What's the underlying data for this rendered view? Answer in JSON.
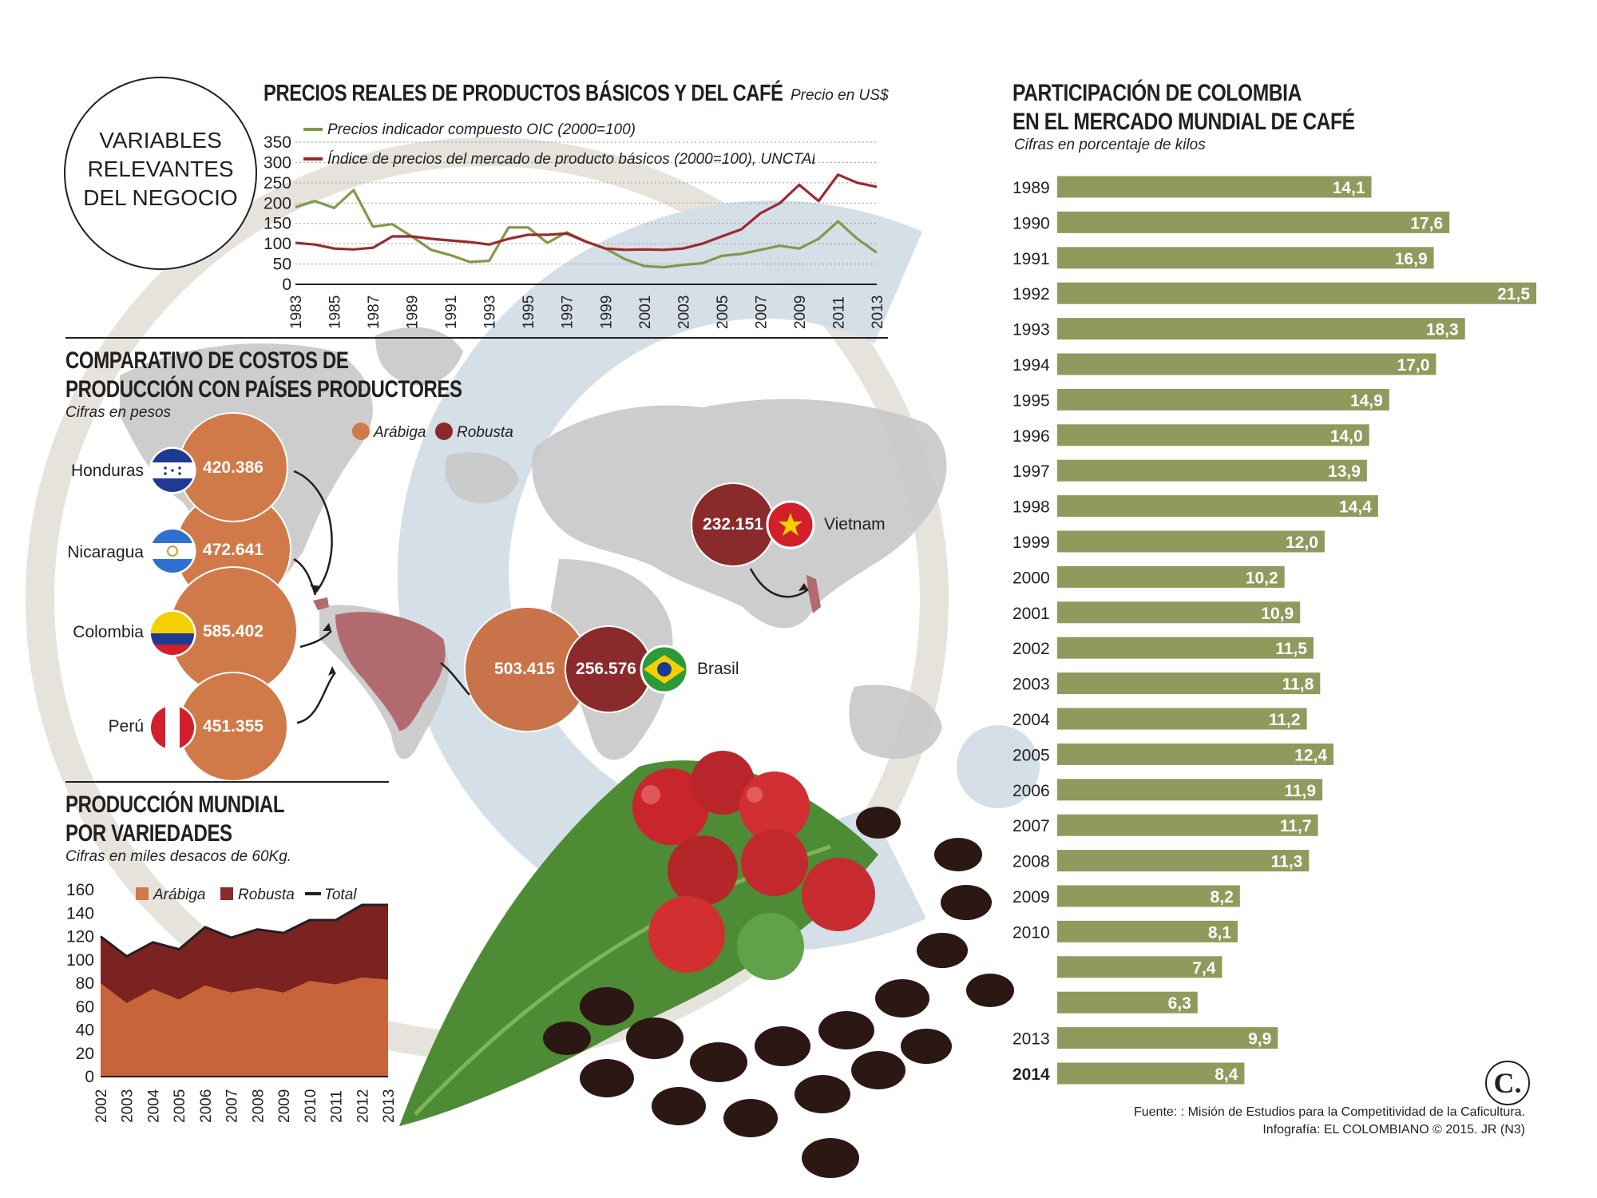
{
  "badge": {
    "line1": "VARIABLES",
    "line2": "RELEVANTES",
    "line3": "DEL NEGOCIO"
  },
  "prices": {
    "title": "PRECIOS REALES DE PRODUCTOS BÁSICOS Y DEL CAFÉ",
    "unit": "Precio en US$",
    "legend_oic": "Precios indicador compuesto OIC (2000=100)",
    "legend_unctad": "Índice de precios del mercado de producto básicos (2000=100), UNCTAD"
  },
  "costs": {
    "title_line1": "COMPARATIVO DE COSTOS DE",
    "title_line2": "PRODUCCIÓN CON PAÍSES PRODUCTORES",
    "subtitle": "Cifras en pesos",
    "legend_arabica": "Arábiga",
    "legend_robusta": "Robusta",
    "countries": [
      {
        "name": "Honduras",
        "arabica": "420.386"
      },
      {
        "name": "Nicaragua",
        "arabica": "472.641"
      },
      {
        "name": "Colombia",
        "arabica": "585.402"
      },
      {
        "name": "Perú",
        "arabica": "451.355"
      }
    ],
    "brasil": {
      "name": "Brasil",
      "arabica": "503.415",
      "robusta": "256.576"
    },
    "vietnam": {
      "name": "Vietnam",
      "robusta": "232.151"
    }
  },
  "production": {
    "title_line1": "PRODUCCIÓN MUNDIAL",
    "title_line2": "POR VARIEDADES",
    "subtitle": "Cifras en miles desacos de 60Kg.",
    "legend_arabica": "Arábiga",
    "legend_robusta": "Robusta",
    "legend_total": "Total"
  },
  "share": {
    "title_line1": "PARTICIPACIÓN DE COLOMBIA",
    "title_line2": "EN EL MERCADO MUNDIAL DE CAFÉ",
    "subtitle": "Cifras en porcentaje de kilos"
  },
  "footer": {
    "source": "Fuente: : Misión de Estudios para la Competitividad de la Caficultura.",
    "credit": "Infografía: EL COLOMBIANO © 2015. JR (N3)"
  },
  "logo_text": "C.",
  "colors": {
    "arabica": "#d07a4a",
    "robusta": "#8b2a2a",
    "oic": "#7f9a4a",
    "unctad": "#9b2a2e",
    "bar": "#8f9a5c",
    "arabica_area": "#c8643a",
    "robusta_area": "#7a2320",
    "map": "#c9c9c9",
    "watermark": "#d3dde6"
  },
  "chart_data": [
    {
      "type": "line",
      "x": [
        1983,
        1984,
        1985,
        1986,
        1987,
        1988,
        1989,
        1990,
        1991,
        1992,
        1993,
        1994,
        1995,
        1996,
        1997,
        1998,
        1999,
        2000,
        2001,
        2002,
        2003,
        2004,
        2005,
        2006,
        2007,
        2008,
        2009,
        2010,
        2011,
        2012,
        2013
      ],
      "xticks": [
        "1983",
        "1985",
        "1987",
        "1989",
        "1991",
        "1993",
        "1995",
        "1997",
        "1999",
        "2001",
        "2003",
        "2005",
        "2007",
        "2009",
        "2011",
        "2013"
      ],
      "yticks": [
        "0",
        "50",
        "100",
        "150",
        "200",
        "250",
        "300",
        "350"
      ],
      "ylim": [
        0,
        350
      ],
      "series": [
        {
          "name": "Precios indicador compuesto OIC (2000=100)",
          "values": [
            190,
            205,
            188,
            232,
            142,
            148,
            118,
            85,
            72,
            55,
            58,
            140,
            140,
            102,
            128,
            105,
            88,
            62,
            45,
            42,
            48,
            52,
            70,
            75,
            85,
            95,
            88,
            112,
            155,
            112,
            78
          ]
        },
        {
          "name": "Índice de precios del mercado de producto básicos (2000=100), UNCTAD",
          "values": [
            102,
            98,
            88,
            86,
            90,
            118,
            118,
            112,
            108,
            104,
            98,
            112,
            122,
            122,
            125,
            105,
            88,
            85,
            86,
            85,
            88,
            100,
            118,
            135,
            175,
            200,
            245,
            205,
            270,
            250,
            240
          ]
        }
      ]
    },
    {
      "type": "area",
      "x": [
        "2002",
        "2003",
        "2004",
        "2005",
        "2006",
        "2007",
        "2008",
        "2009",
        "2010",
        "2011",
        "2012",
        "2013"
      ],
      "yticks": [
        "0",
        "20",
        "40",
        "60",
        "80",
        "100",
        "120",
        "140",
        "160"
      ],
      "ylim": [
        0,
        160
      ],
      "series": [
        {
          "name": "Arábiga",
          "values": [
            80,
            63,
            75,
            66,
            78,
            72,
            76,
            72,
            82,
            79,
            85,
            83
          ]
        },
        {
          "name": "Robusta",
          "values": [
            40,
            40,
            40,
            43,
            50,
            47,
            50,
            51,
            52,
            55,
            62,
            64
          ]
        },
        {
          "name": "Total",
          "values": [
            120,
            103,
            115,
            109,
            128,
            119,
            126,
            123,
            134,
            134,
            147,
            147
          ]
        }
      ]
    },
    {
      "type": "bar",
      "categories": [
        "1989",
        "1990",
        "1991",
        "1992",
        "1993",
        "1994",
        "1995",
        "1996",
        "1997",
        "1998",
        "1999",
        "2000",
        "2001",
        "2002",
        "2003",
        "2004",
        "2005",
        "2006",
        "2007",
        "2008",
        "2009",
        "2010",
        "",
        "",
        "2013",
        "2014"
      ],
      "values": [
        14.1,
        17.6,
        16.9,
        21.5,
        18.3,
        17.0,
        14.9,
        14.0,
        13.9,
        14.4,
        12.0,
        10.2,
        10.9,
        11.5,
        11.8,
        11.2,
        12.4,
        11.9,
        11.7,
        11.3,
        8.2,
        8.1,
        7.4,
        6.3,
        9.9,
        8.4
      ],
      "value_labels": [
        "14,1",
        "17,6",
        "16,9",
        "21,5",
        "18,3",
        "17,0",
        "14,9",
        "14,0",
        "13,9",
        "14,4",
        "12,0",
        "10,2",
        "10,9",
        "11,5",
        "11,8",
        "11,2",
        "12,4",
        "11,9",
        "11,7",
        "11,3",
        "8,2",
        "8,1",
        "7,4",
        "6,3",
        "9,9",
        "8,4"
      ]
    }
  ]
}
